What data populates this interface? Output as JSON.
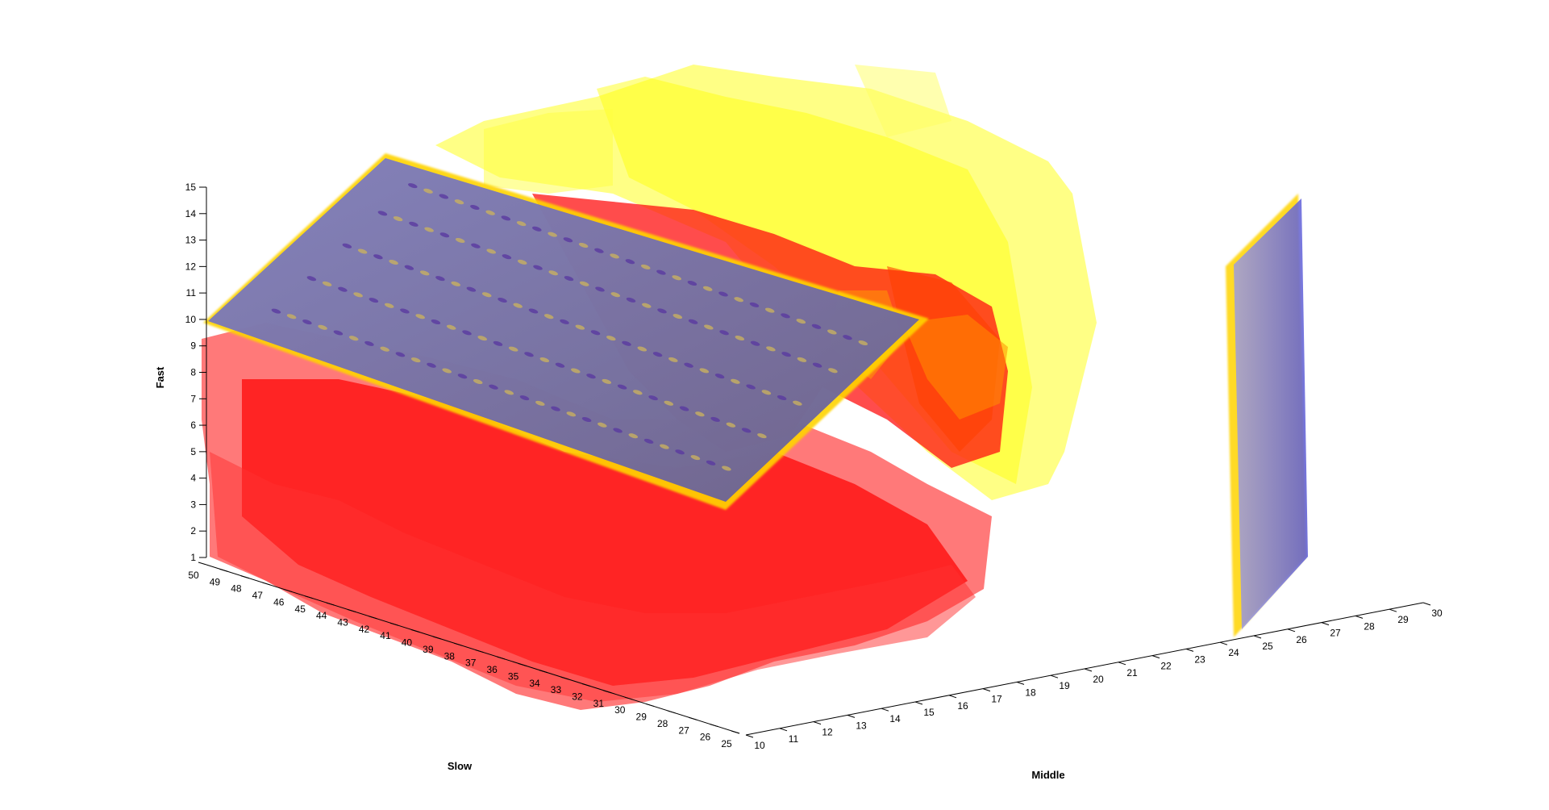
{
  "chart_data": {
    "type": "volume-isosurface-3d",
    "xlabel": "Middle",
    "ylabel": "Slow",
    "zlabel": "Fast",
    "x": {
      "ticks": [
        10,
        11,
        12,
        13,
        14,
        15,
        16,
        17,
        18,
        19,
        20,
        21,
        22,
        23,
        24,
        25,
        26,
        27,
        28,
        29,
        30
      ],
      "range": [
        10,
        30
      ]
    },
    "y": {
      "ticks": [
        25,
        26,
        27,
        28,
        29,
        30,
        31,
        32,
        33,
        34,
        35,
        36,
        37,
        38,
        39,
        40,
        41,
        42,
        43,
        44,
        45,
        46,
        47,
        48,
        49,
        50
      ],
      "range": [
        25,
        50
      ]
    },
    "z": {
      "ticks": [
        1,
        2,
        3,
        4,
        5,
        6,
        7,
        8,
        9,
        10,
        11,
        12,
        13,
        14,
        15
      ],
      "range": [
        1,
        15
      ]
    },
    "surfaces": [
      {
        "level": "low",
        "color": "#ff0000"
      },
      {
        "level": "mid",
        "color": "#ffa500"
      },
      {
        "level": "high",
        "color": "#ffff00"
      },
      {
        "level": "slice-plane",
        "color": "#6a6ad0"
      }
    ],
    "grid": false,
    "legend": "none"
  }
}
